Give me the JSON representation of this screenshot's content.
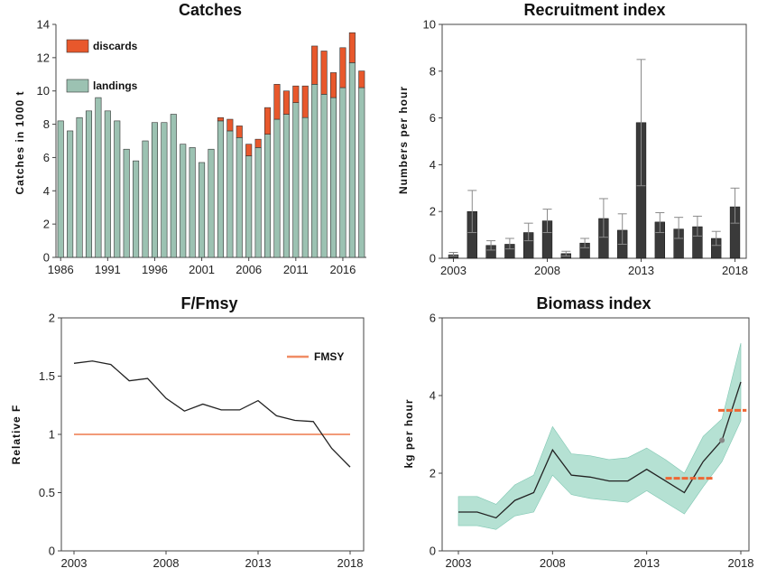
{
  "colors": {
    "landings": "#9cc2b2",
    "discards": "#e8582c",
    "bar_dark": "#3a3a3a",
    "err": "#8a8a8a",
    "fmsy": "#f08c64",
    "ci_band": "#a8dccb",
    "line": "#222222",
    "ref": "#ee6633"
  },
  "chart_data": [
    {
      "id": "catches",
      "type": "bar",
      "title": "Catches",
      "xlabel": "",
      "ylabel": "Catches in 1000 t",
      "ylim": [
        0,
        14
      ],
      "yticks": [
        "0",
        "2",
        "4",
        "6",
        "8",
        "10",
        "12",
        "14"
      ],
      "xticks": [
        "1986",
        "1991",
        "1996",
        "2001",
        "2006",
        "2011",
        "2016"
      ],
      "stacked": true,
      "legend": {
        "position": "top-left",
        "items": [
          "discards",
          "landings"
        ]
      },
      "categories": [
        1986,
        1987,
        1988,
        1989,
        1990,
        1991,
        1992,
        1993,
        1994,
        1995,
        1996,
        1997,
        1998,
        1999,
        2000,
        2001,
        2002,
        2003,
        2004,
        2005,
        2006,
        2007,
        2008,
        2009,
        2010,
        2011,
        2012,
        2013,
        2014,
        2015,
        2016,
        2017,
        2018
      ],
      "series": [
        {
          "name": "landings",
          "values": [
            8.2,
            7.6,
            8.4,
            8.8,
            9.6,
            8.8,
            8.2,
            6.5,
            5.8,
            7.0,
            8.1,
            8.1,
            8.6,
            6.8,
            6.6,
            5.7,
            6.5,
            8.2,
            7.6,
            7.2,
            6.1,
            6.6,
            7.4,
            8.3,
            8.6,
            9.3,
            8.4,
            10.4,
            9.8,
            9.6,
            10.2,
            11.7,
            10.2
          ]
        },
        {
          "name": "discards",
          "values": [
            0,
            0,
            0,
            0,
            0,
            0,
            0,
            0,
            0,
            0,
            0,
            0,
            0,
            0,
            0,
            0,
            0,
            0.2,
            0.7,
            0.7,
            0.7,
            0.5,
            1.6,
            2.1,
            1.4,
            1.0,
            1.9,
            2.3,
            2.6,
            1.5,
            2.4,
            1.8,
            1.0
          ]
        }
      ]
    },
    {
      "id": "recruitment",
      "type": "bar",
      "title": "Recruitment index",
      "xlabel": "",
      "ylabel": "Numbers per hour",
      "ylim": [
        0,
        10
      ],
      "yticks": [
        "0",
        "2",
        "4",
        "6",
        "8",
        "10"
      ],
      "xticks": [
        "2003",
        "2008",
        "2013",
        "2018"
      ],
      "categories": [
        2003,
        2004,
        2005,
        2006,
        2007,
        2008,
        2009,
        2010,
        2011,
        2012,
        2013,
        2014,
        2015,
        2016,
        2017,
        2018
      ],
      "values": [
        0.15,
        2.0,
        0.55,
        0.6,
        1.1,
        1.6,
        0.2,
        0.65,
        1.7,
        1.2,
        5.8,
        1.55,
        1.25,
        1.35,
        0.85,
        2.2
      ],
      "err_low": [
        0.1,
        1.1,
        0.35,
        0.4,
        0.75,
        1.1,
        0.1,
        0.45,
        0.9,
        0.6,
        3.1,
        1.1,
        0.85,
        0.95,
        0.55,
        1.5
      ],
      "err_high": [
        0.25,
        2.9,
        0.75,
        0.85,
        1.5,
        2.1,
        0.3,
        0.85,
        2.55,
        1.9,
        8.5,
        1.95,
        1.75,
        1.8,
        1.15,
        3.0
      ]
    },
    {
      "id": "f_fmsy",
      "type": "line",
      "title": "F/Fmsy",
      "xlabel": "",
      "ylabel": "Relative F",
      "ylim": [
        0,
        2
      ],
      "yticks": [
        "0",
        "0.5",
        "1",
        "1.5",
        "2"
      ],
      "xticks": [
        "2003",
        "2008",
        "2013",
        "2018"
      ],
      "legend": {
        "position": "top-right",
        "items": [
          "FMSY"
        ]
      },
      "x": [
        2003,
        2004,
        2005,
        2006,
        2007,
        2008,
        2009,
        2010,
        2011,
        2012,
        2013,
        2014,
        2015,
        2016,
        2017,
        2018
      ],
      "series": [
        {
          "name": "",
          "values": [
            1.61,
            1.63,
            1.6,
            1.46,
            1.48,
            1.31,
            1.2,
            1.26,
            1.21,
            1.21,
            1.29,
            1.16,
            1.12,
            1.11,
            0.88,
            0.72
          ]
        },
        {
          "name": "FMSY",
          "values": [
            1.0,
            1.0,
            1.0,
            1.0,
            1.0,
            1.0,
            1.0,
            1.0,
            1.0,
            1.0,
            1.0,
            1.0,
            1.0,
            1.0,
            1.0,
            1.0
          ]
        }
      ]
    },
    {
      "id": "biomass",
      "type": "area",
      "title": "Biomass index",
      "xlabel": "",
      "ylabel": "kg per hour",
      "ylim": [
        0,
        6
      ],
      "yticks": [
        "0",
        "2",
        "4",
        "6"
      ],
      "xticks": [
        "2003",
        "2008",
        "2013",
        "2018"
      ],
      "x": [
        2003,
        2004,
        2005,
        2006,
        2007,
        2008,
        2009,
        2010,
        2011,
        2012,
        2013,
        2014,
        2015,
        2016,
        2017,
        2018
      ],
      "values": [
        1.0,
        1.0,
        0.85,
        1.3,
        1.5,
        2.6,
        1.95,
        1.9,
        1.8,
        1.8,
        2.1,
        1.8,
        1.5,
        2.3,
        2.85,
        4.35
      ],
      "lower": [
        0.65,
        0.65,
        0.55,
        0.9,
        1.0,
        1.95,
        1.45,
        1.35,
        1.3,
        1.25,
        1.55,
        1.25,
        0.95,
        1.65,
        2.3,
        3.35
      ],
      "upper": [
        1.4,
        1.4,
        1.2,
        1.7,
        1.95,
        3.2,
        2.5,
        2.45,
        2.35,
        2.4,
        2.65,
        2.35,
        2.0,
        2.95,
        3.4,
        5.35
      ],
      "point": {
        "x": 2017,
        "y": 2.85
      },
      "reference_segments": [
        {
          "x1": 2014,
          "x2": 2016.5,
          "y": 1.87
        },
        {
          "x1": 2016.8,
          "x2": 2018.3,
          "y": 3.62
        }
      ]
    }
  ]
}
